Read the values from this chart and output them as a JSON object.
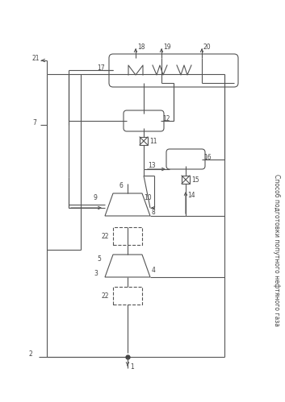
{
  "title": "Способ подготовки попутного нефтяного газа",
  "title_fontsize": 5.5,
  "bg_color": "#ffffff",
  "line_color": "#555555",
  "line_width": 0.8,
  "fig_width": 3.53,
  "fig_height": 4.99,
  "dpi": 100
}
